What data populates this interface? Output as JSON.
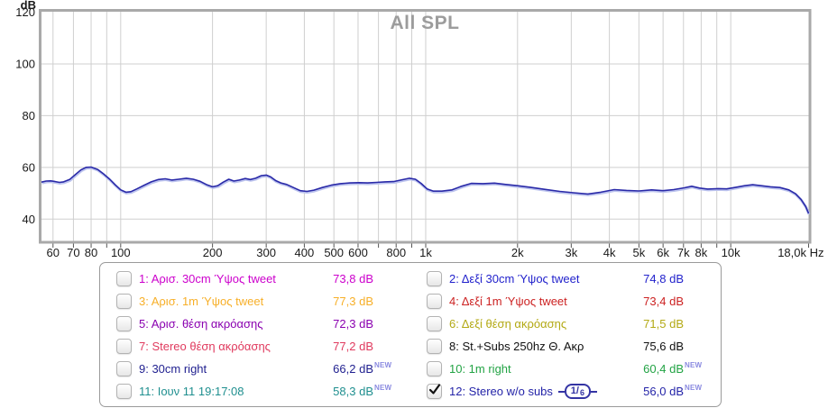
{
  "chart_data": {
    "type": "line",
    "title": "All SPL",
    "ylabel": "dB",
    "x_scale": "log",
    "x_range": [
      55,
      18000
    ],
    "y_axis": {
      "min_label": 40,
      "max_label": 120,
      "ticks": [
        120,
        100,
        80,
        60,
        40
      ],
      "gridline_step_db": 20
    },
    "y_gridlines": [
      100,
      80,
      60,
      40
    ],
    "x_gridlines": [
      60,
      70,
      80,
      90,
      100,
      200,
      300,
      400,
      500,
      600,
      700,
      800,
      900,
      1000,
      2000,
      3000,
      4000,
      5000,
      6000,
      7000,
      8000,
      9000,
      10000
    ],
    "x_ticks": [
      {
        "f": 60,
        "label": "60"
      },
      {
        "f": 70,
        "label": "70"
      },
      {
        "f": 80,
        "label": "80"
      },
      {
        "f": 100,
        "label": "100"
      },
      {
        "f": 200,
        "label": "200"
      },
      {
        "f": 300,
        "label": "300"
      },
      {
        "f": 400,
        "label": "400"
      },
      {
        "f": 500,
        "label": "500"
      },
      {
        "f": 600,
        "label": "600"
      },
      {
        "f": 800,
        "label": "800"
      },
      {
        "f": 1000,
        "label": "1k"
      },
      {
        "f": 2000,
        "label": "2k"
      },
      {
        "f": 3000,
        "label": "3k"
      },
      {
        "f": 4000,
        "label": "4k"
      },
      {
        "f": 5000,
        "label": "5k"
      },
      {
        "f": 6000,
        "label": "6k"
      },
      {
        "f": 7000,
        "label": "7k"
      },
      {
        "f": 8000,
        "label": "8k"
      },
      {
        "f": 10000,
        "label": "10k"
      },
      {
        "f": 18000,
        "label": "18,0k Hz",
        "align": "end"
      }
    ],
    "grid": true,
    "legend_position": "bottom",
    "series": [
      {
        "name": "12: Stereo w/o subs",
        "color": "#2a2aa8",
        "points": [
          [
            55,
            54.3
          ],
          [
            57,
            54.7
          ],
          [
            59,
            54.8
          ],
          [
            61,
            54.5
          ],
          [
            63,
            54.2
          ],
          [
            65,
            54.4
          ],
          [
            68,
            55.3
          ],
          [
            71,
            57.2
          ],
          [
            74,
            59.0
          ],
          [
            77,
            60.0
          ],
          [
            80,
            60.1
          ],
          [
            84,
            59.2
          ],
          [
            88,
            57.4
          ],
          [
            92,
            55.4
          ],
          [
            96,
            53.2
          ],
          [
            100,
            51.3
          ],
          [
            104,
            50.4
          ],
          [
            108,
            50.6
          ],
          [
            113,
            51.7
          ],
          [
            119,
            53.0
          ],
          [
            126,
            54.4
          ],
          [
            133,
            55.3
          ],
          [
            140,
            55.6
          ],
          [
            147,
            55.1
          ],
          [
            155,
            55.4
          ],
          [
            164,
            55.8
          ],
          [
            173,
            55.4
          ],
          [
            182,
            54.6
          ],
          [
            192,
            53.2
          ],
          [
            200,
            52.5
          ],
          [
            208,
            52.9
          ],
          [
            217,
            54.3
          ],
          [
            226,
            55.4
          ],
          [
            235,
            54.7
          ],
          [
            245,
            55.1
          ],
          [
            256,
            55.7
          ],
          [
            266,
            55.3
          ],
          [
            277,
            55.8
          ],
          [
            289,
            56.8
          ],
          [
            300,
            57.0
          ],
          [
            310,
            56.3
          ],
          [
            322,
            54.9
          ],
          [
            335,
            54.0
          ],
          [
            350,
            53.4
          ],
          [
            368,
            52.2
          ],
          [
            388,
            51.0
          ],
          [
            408,
            50.7
          ],
          [
            430,
            51.2
          ],
          [
            458,
            52.2
          ],
          [
            490,
            53.1
          ],
          [
            525,
            53.7
          ],
          [
            565,
            54.0
          ],
          [
            605,
            54.1
          ],
          [
            645,
            54.0
          ],
          [
            690,
            54.2
          ],
          [
            735,
            54.4
          ],
          [
            785,
            54.5
          ],
          [
            835,
            55.2
          ],
          [
            885,
            55.8
          ],
          [
            925,
            55.4
          ],
          [
            965,
            53.8
          ],
          [
            1010,
            51.7
          ],
          [
            1060,
            50.8
          ],
          [
            1130,
            50.8
          ],
          [
            1220,
            51.3
          ],
          [
            1310,
            52.7
          ],
          [
            1410,
            53.8
          ],
          [
            1540,
            53.7
          ],
          [
            1680,
            53.9
          ],
          [
            1830,
            53.4
          ],
          [
            2000,
            52.9
          ],
          [
            2200,
            52.3
          ],
          [
            2450,
            51.5
          ],
          [
            2750,
            50.7
          ],
          [
            3050,
            50.2
          ],
          [
            3400,
            49.7
          ],
          [
            3750,
            50.4
          ],
          [
            4150,
            51.4
          ],
          [
            4550,
            51.1
          ],
          [
            5000,
            50.9
          ],
          [
            5500,
            51.3
          ],
          [
            6000,
            51.0
          ],
          [
            6500,
            51.4
          ],
          [
            7050,
            52.1
          ],
          [
            7450,
            52.7
          ],
          [
            7900,
            52.0
          ],
          [
            8400,
            51.6
          ],
          [
            9100,
            51.8
          ],
          [
            9700,
            51.7
          ],
          [
            10400,
            52.3
          ],
          [
            11100,
            52.9
          ],
          [
            11800,
            53.3
          ],
          [
            12600,
            52.9
          ],
          [
            13500,
            52.5
          ],
          [
            14500,
            52.2
          ],
          [
            15500,
            51.3
          ],
          [
            16300,
            49.8
          ],
          [
            17000,
            47.6
          ],
          [
            17600,
            44.9
          ],
          [
            18000,
            42.2
          ]
        ]
      }
    ]
  },
  "legend": {
    "new_label": "NEW",
    "rows": [
      {
        "label": "1: Αρισ. 30cm Ύψος tweet",
        "value": "73,8 dB",
        "color": "#cc00cc",
        "checked": false,
        "new": false
      },
      {
        "label": "2: Δεξί 30cm Ύψος tweet",
        "value": "74,8 dB",
        "color": "#2222cc",
        "checked": false,
        "new": false
      },
      {
        "label": "3: Αρισ. 1m Ύψος tweet",
        "value": "77,3 dB",
        "color": "#f7af28",
        "checked": false,
        "new": false
      },
      {
        "label": "4: Δεξί 1m Ύψος tweet",
        "value": "73,4 dB",
        "color": "#cc2222",
        "checked": false,
        "new": false
      },
      {
        "label": "5: Αρισ. θέση ακρόασης",
        "value": "72,3 dB",
        "color": "#8a00b0",
        "checked": false,
        "new": false
      },
      {
        "label": "6: Δεξί θέση ακρόασης",
        "value": "71,5 dB",
        "color": "#b3a914",
        "checked": false,
        "new": false
      },
      {
        "label": "7: Stereo θέση ακρόασης",
        "value": "77,2 dB",
        "color": "#e03a5e",
        "checked": false,
        "new": false
      },
      {
        "label": "8: St.+Subs 250hz Θ. Ακρ",
        "value": "75,6 dB",
        "color": "#111111",
        "checked": false,
        "new": false
      },
      {
        "label": "9: 30cm right",
        "value": "66,2 dB",
        "color": "#1f1f8f",
        "checked": false,
        "new": true
      },
      {
        "label": "10: 1m right",
        "value": "60,4 dB",
        "color": "#22a344",
        "checked": false,
        "new": true
      },
      {
        "label": "11: Ιουν 11 19:17:08",
        "value": "58,3 dB",
        "color": "#1f8f8f",
        "checked": false,
        "new": true
      },
      {
        "label": "12: Stereo w/o subs",
        "value": "56,0 dB",
        "color": "#2424a8",
        "checked": true,
        "new": true,
        "badge": "1/6"
      }
    ]
  }
}
